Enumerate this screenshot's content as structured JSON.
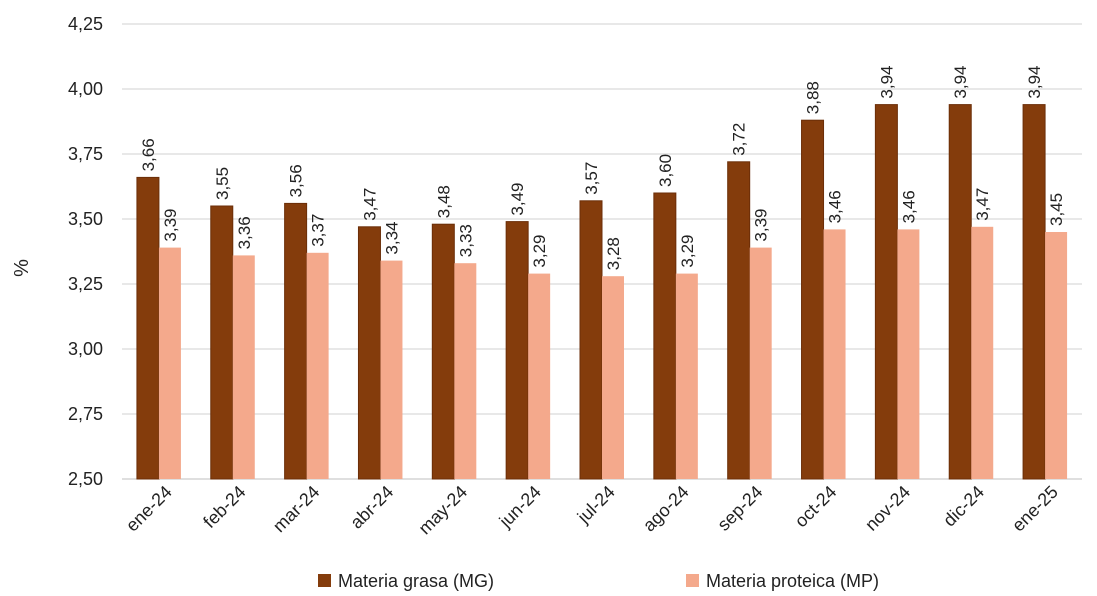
{
  "chart_data": {
    "type": "bar",
    "ylabel": "%",
    "xlabel": "",
    "ylim": [
      2.5,
      4.25
    ],
    "yticks": [
      "2,50",
      "2,75",
      "3,00",
      "3,25",
      "3,50",
      "3,75",
      "4,00",
      "4,25"
    ],
    "categories": [
      "ene-24",
      "feb-24",
      "mar-24",
      "abr-24",
      "may-24",
      "jun-24",
      "jul-24",
      "ago-24",
      "sep-24",
      "oct-24",
      "nov-24",
      "dic-24",
      "ene-25"
    ],
    "series": [
      {
        "name": "Materia grasa (MG)",
        "color": "#843c0c",
        "values": [
          3.66,
          3.55,
          3.56,
          3.47,
          3.48,
          3.49,
          3.57,
          3.6,
          3.72,
          3.88,
          3.94,
          3.94,
          3.94
        ],
        "labels": [
          "3,66",
          "3,55",
          "3,56",
          "3,47",
          "3,48",
          "3,49",
          "3,57",
          "3,60",
          "3,72",
          "3,88",
          "3,94",
          "3,94",
          "3,94"
        ]
      },
      {
        "name": "Materia proteica (MP)",
        "color": "#f4a98c",
        "values": [
          3.39,
          3.36,
          3.37,
          3.34,
          3.33,
          3.29,
          3.28,
          3.29,
          3.39,
          3.46,
          3.46,
          3.47,
          3.45
        ],
        "labels": [
          "3,39",
          "3,36",
          "3,37",
          "3,34",
          "3,33",
          "3,29",
          "3,28",
          "3,29",
          "3,39",
          "3,46",
          "3,46",
          "3,47",
          "3,45"
        ]
      }
    ],
    "grid": true,
    "legend_position": "bottom"
  }
}
